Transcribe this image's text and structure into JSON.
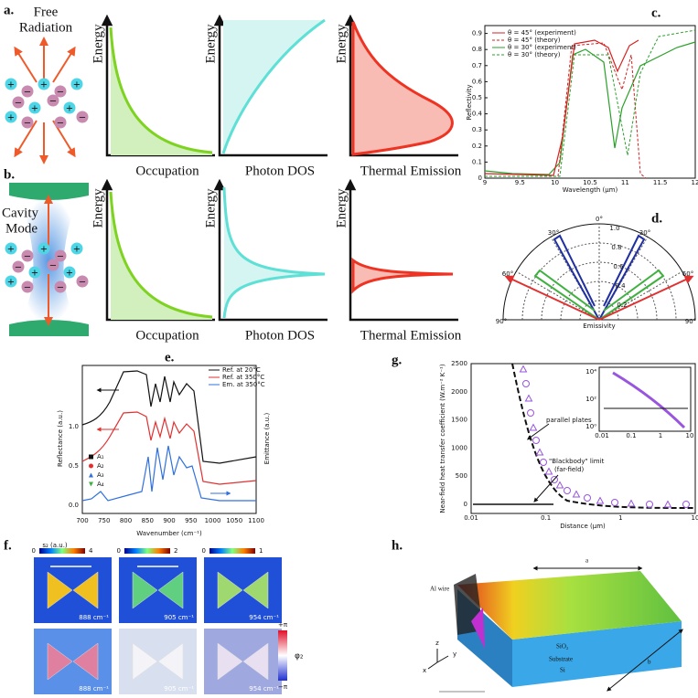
{
  "panels": {
    "a": {
      "label": "a.",
      "caption": [
        "Free",
        "Radiation"
      ],
      "axes": [
        {
          "y": "Energy",
          "x": "Occupation"
        },
        {
          "y": "Energy",
          "x": "Photon DOS"
        },
        {
          "y": "Energy",
          "x": "Thermal Emission"
        }
      ]
    },
    "b": {
      "label": "b.",
      "caption": [
        "Cavity",
        "Mode"
      ],
      "axes": [
        {
          "y": "Energy",
          "x": "Occupation"
        },
        {
          "y": "Energy",
          "x": "Photon DOS"
        },
        {
          "y": "Energy",
          "x": "Thermal Emission"
        }
      ]
    },
    "charge_signs": {
      "positive": "+",
      "negative": "−"
    },
    "c": {
      "label": "c.",
      "legend": [
        "θ = 45° (experiment)",
        "θ = 45° (theory)",
        "θ = 30° (experiment)",
        "θ = 30° (theory)"
      ],
      "xlabel": "Wavelength (μm)",
      "ylabel": "Reflectivity",
      "xticks": [
        "9",
        "9.5",
        "10",
        "10.5",
        "11",
        "11.5",
        "12"
      ],
      "yticks": [
        "0",
        "0.1",
        "0.2",
        "0.3",
        "0.4",
        "0.5",
        "0.6",
        "0.7",
        "0.8",
        "0.9"
      ]
    },
    "d": {
      "label": "d.",
      "angles": [
        "90°",
        "60°",
        "30°",
        "0°",
        "30°",
        "60°",
        "90°"
      ],
      "radial": [
        "1.0",
        "0.8",
        "0.6",
        "0.4",
        "0.2"
      ],
      "xlabel": "Emissivity"
    },
    "e": {
      "label": "e.",
      "legend": [
        "Ref. at 20°C",
        "Ref. at 350°C",
        "Em. at 350°C"
      ],
      "markers": [
        "A₁",
        "A₂",
        "A₃",
        "A₄"
      ],
      "xlabel": "Wavenumber (cm⁻¹)",
      "ylabel": "Reflectance (a.u.)",
      "y2label": "Emittance (a.u.)",
      "yticks": [
        "0.0",
        "0.5",
        "1.0"
      ],
      "xticks": [
        "700",
        "750",
        "800",
        "850",
        "900",
        "950",
        "1000",
        "1050",
        "1100"
      ]
    },
    "f": {
      "label": "f.",
      "colorbar_title": "s₂ (a.u.)",
      "colorbars": [
        [
          "0",
          "4"
        ],
        [
          "0",
          "2"
        ],
        [
          "0",
          "1"
        ]
      ],
      "wavenumbers": [
        "888 cm⁻¹",
        "905 cm⁻¹",
        "954 cm⁻¹"
      ],
      "phase": {
        "top": "+π",
        "name": "φ₂",
        "bottom": "−π"
      }
    },
    "g": {
      "label": "g.",
      "ylabel": "Near-field heat transfer coefficient (W.m⁻² K⁻¹)",
      "xlabel": "Distance (μm)",
      "yticks": [
        "0",
        "500",
        "1000",
        "1500",
        "2000",
        "2500"
      ],
      "xticks": [
        "0.01",
        "0.1",
        "1",
        "10"
      ],
      "annotations": [
        "parallel plates",
        "\"Blackbody\" limit",
        "(far-field)"
      ],
      "inset_yticks": [
        "10⁴",
        "10²",
        "10⁰"
      ],
      "inset_xticks": [
        "0.01",
        "0.1",
        "1",
        "10"
      ]
    },
    "h": {
      "label": "h.",
      "wire": "Al wire",
      "oxide": "SiO₂",
      "substrate": [
        "Substrate",
        "Si"
      ],
      "dims": [
        "a",
        "b"
      ],
      "axes": [
        "z",
        "y",
        "x"
      ]
    }
  }
}
